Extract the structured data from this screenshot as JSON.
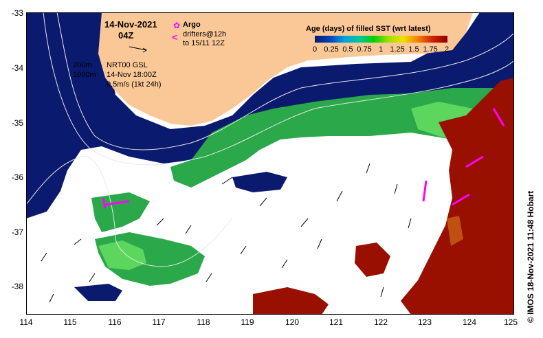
{
  "map": {
    "date_title": "14-Nov-2021",
    "time_title": "04Z",
    "argo_label": "Argo",
    "drifters_line1": "drifters@12h",
    "drifters_line2": "to 15/11 12Z",
    "depth_200": "200m",
    "depth_1000": "1000m",
    "product_line1": "NRT00 GSL",
    "product_line2": "14-Nov 18:00Z",
    "vector_scale": "0.5m/s (1kt 24h)",
    "credit": "© IMOS 18-Nov-2021 11:48 Hobart",
    "x_ticks": [
      "114",
      "115",
      "116",
      "117",
      "118",
      "119",
      "120",
      "121",
      "122",
      "123",
      "124",
      "125"
    ],
    "y_ticks": [
      "-33",
      "-34",
      "-35",
      "-36",
      "-37",
      "-38"
    ],
    "colorbar": {
      "title": "Age (days) of filled SST (wrt latest)",
      "labels": [
        "0",
        "0.25",
        "0.5",
        "0.75",
        "1",
        "1.25",
        "1.5",
        "1.75",
        "2"
      ]
    },
    "colors": {
      "land": "#fac896",
      "fresh": "#0a1a6e",
      "mid": "#2aa84a",
      "light_green": "#5cd65c",
      "old": "#9a1000",
      "argo": "#ff00ff"
    }
  }
}
